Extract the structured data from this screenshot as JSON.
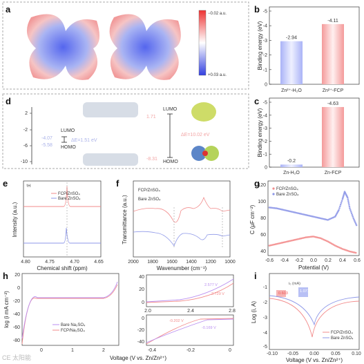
{
  "panels": {
    "a": {
      "label": "a",
      "colorbar_top": "−0.02 a.u.",
      "colorbar_bottom": "+0.03 a.u."
    },
    "b": {
      "label": "b"
    },
    "c": {
      "label": "c"
    },
    "d": {
      "label": "d",
      "ticks": [
        "2",
        "-2",
        "-6",
        "-10"
      ],
      "left_lumo": "-4.07",
      "left_homo": "-5.58",
      "left_gap": "ΔE=1.51 eV",
      "right_lumo": "1.71",
      "right_homo": "-8.31",
      "right_gap": "ΔE=10.02 eV",
      "lumo": "LUMO",
      "homo": "HOMO"
    },
    "e": {
      "label": "e",
      "nucleus": "¹H"
    },
    "f": {
      "label": "f"
    },
    "g": {
      "label": "g"
    },
    "h": {
      "label": "h"
    },
    "i": {
      "label": "i",
      "inset_title": "i₀ (mA)",
      "inset_v1": "0.603",
      "inset_v2": "1.071"
    }
  },
  "colors": {
    "pink": "#f28b8b",
    "blue": "#8d97e8",
    "red_bar": "#ef6b6b",
    "blue_bar": "#8f9cf0"
  },
  "watermark": "CE 太阳能",
  "chart_data": [
    {
      "id": "b",
      "type": "bar",
      "categories": [
        "Zn²⁺-H₂O",
        "Zn²⁺-FCP"
      ],
      "values": [
        -2.94,
        -4.11
      ],
      "value_labels": [
        "-2.94",
        "-4.11"
      ],
      "ylabel": "Binding energy (eV)",
      "ylim": [
        0,
        -5
      ],
      "yticks": [
        "0",
        "-1",
        "-2",
        "-3",
        "-4",
        "-5"
      ]
    },
    {
      "id": "c",
      "type": "bar",
      "categories": [
        "Zn-H₂O",
        "Zn-FCP"
      ],
      "values": [
        -0.2,
        -4.63
      ],
      "value_labels": [
        "-0.2",
        "-4.63"
      ],
      "ylabel": "Binding energy (eV)",
      "ylim": [
        0,
        -5
      ],
      "yticks": [
        "0",
        "-1",
        "-2",
        "-3",
        "-4",
        "-5"
      ]
    },
    {
      "id": "e",
      "type": "line",
      "xlabel": "Chemical shift (ppm)",
      "ylabel": "Intensity (a.u.)",
      "xlim": [
        4.8,
        4.65
      ],
      "xticks": [
        "4.80",
        "4.75",
        "4.70",
        "4.65"
      ],
      "series": [
        {
          "name": "FCP/ZnSO₄",
          "peak": 4.722
        },
        {
          "name": "Bare ZnSO₄",
          "peak": 4.718
        }
      ]
    },
    {
      "id": "f",
      "type": "line",
      "xlabel": "Wavenumber (cm⁻¹)",
      "ylabel": "Transmittance (a.u.)",
      "xlim": [
        2000,
        1000
      ],
      "xticks": [
        "2000",
        "1800",
        "1600",
        "1400",
        "1200",
        "1000"
      ],
      "series": [
        {
          "name": "FCP/ZnSO₄"
        },
        {
          "name": "Bare ZnSO₄"
        }
      ]
    },
    {
      "id": "g",
      "type": "scatter",
      "xlabel": "Potential (V)",
      "ylabel": "C (μF cm⁻²)",
      "xlim": [
        -0.6,
        0.6
      ],
      "ylim": [
        30,
        120
      ],
      "xticks": [
        "-0.6",
        "-0.4",
        "-0.2",
        "0.0",
        "0.2",
        "0.4",
        "0.6"
      ],
      "yticks": [
        "40",
        "60",
        "80",
        "100",
        "120"
      ],
      "series": [
        {
          "name": "FCP/ZnSO₄",
          "x": [
            -0.6,
            -0.5,
            -0.4,
            -0.3,
            -0.2,
            -0.1,
            0.0,
            0.1,
            0.2,
            0.3,
            0.4,
            0.5,
            0.6
          ],
          "y": [
            47,
            49,
            51,
            53,
            55,
            57,
            58,
            56,
            52,
            47,
            43,
            40,
            38
          ]
        },
        {
          "name": "Bare ZnSO₄",
          "x": [
            -0.6,
            -0.5,
            -0.4,
            -0.3,
            -0.2,
            -0.1,
            0.0,
            0.1,
            0.2,
            0.3,
            0.35,
            0.4,
            0.43,
            0.47,
            0.5,
            0.55,
            0.6
          ],
          "y": [
            93,
            92,
            90,
            88,
            86,
            84,
            82,
            80,
            78,
            82,
            90,
            103,
            112,
            105,
            92,
            80,
            70
          ]
        }
      ]
    },
    {
      "id": "h",
      "type": "line",
      "xlabel": "Voltage (V vs. Zn/Zn²⁺)",
      "ylabel": "log (i mA cm⁻²)",
      "xticks_main": [
        "0",
        "1",
        "2"
      ],
      "yticks_main": [
        "20",
        "0",
        "-20",
        "-40",
        "-60",
        "-80"
      ],
      "xticks_top": [
        "2.0",
        "2.4",
        "2.8"
      ],
      "yticks_top": [
        "0",
        "20",
        "40"
      ],
      "xticks_bot": [
        "-0.4",
        "-0.2",
        "0"
      ],
      "yticks_bot": [
        "0",
        "-20",
        "-40"
      ],
      "annotations": [
        "2.577 V",
        "2.729 V",
        "-0.202 V",
        "-0.169 V"
      ],
      "series": [
        {
          "name": "Bare Na₂SO₄"
        },
        {
          "name": "FCP/Na₂SO₄"
        }
      ]
    },
    {
      "id": "i",
      "type": "line",
      "xlabel": "Voltage (V vs. Zn/Zn²⁺)",
      "ylabel": "Log (i, A)",
      "xlim": [
        -0.1,
        0.1
      ],
      "xticks": [
        "-0.10",
        "-0.05",
        "0.00",
        "0.05",
        "0.10"
      ],
      "yticks": [
        "-1",
        "-2",
        "-3",
        "-4",
        "-5"
      ],
      "series": [
        {
          "name": "FCP/ZnSO₄"
        },
        {
          "name": "Bare ZnSO₄"
        }
      ]
    }
  ],
  "text": {
    "b_ylabel": "Binding energy (eV)",
    "c_ylabel": "Binding energy (eV)",
    "b_cat1": "Zn²⁺-H₂O",
    "b_cat2": "Zn²⁺-FCP",
    "b_v1": "-2.94",
    "b_v2": "-4.11",
    "c_cat1": "Zn-H₂O",
    "c_cat2": "Zn-FCP",
    "c_v1": "-0.2",
    "c_v2": "-4.63",
    "yt0": "0",
    "yt1": "-1",
    "yt2": "-2",
    "yt3": "-3",
    "yt4": "-4",
    "yt5": "-5",
    "e_xlabel": "Chemical shift (ppm)",
    "e_ylabel": "Intensity (a.u.)",
    "e_leg1": "FCP/ZnSO₄",
    "e_leg2": "Bare ZnSO₄",
    "e_t1": "4.80",
    "e_t2": "4.75",
    "e_t3": "4.70",
    "e_t4": "4.65",
    "f_xlabel": "Wavenumber (cm⁻¹)",
    "f_ylabel": "Transmittance (a.u.)",
    "f_leg1": "FCP/ZnSO₄",
    "f_leg2": "Bare ZnSO₄",
    "f_t1": "2000",
    "f_t2": "1800",
    "f_t3": "1600",
    "f_t4": "1400",
    "f_t5": "1200",
    "f_t6": "1000",
    "g_xlabel": "Potential (V)",
    "g_ylabel": "C (μF cm⁻²)",
    "g_leg1": "FCP/ZnSO₄",
    "g_leg2": "Bare ZnSO₄",
    "gx1": "-0.6",
    "gx2": "-0.4",
    "gx3": "-0.2",
    "gx4": "0.0",
    "gx5": "0.2",
    "gx6": "0.4",
    "gx7": "0.6",
    "gy1": "120",
    "gy2": "100",
    "gy3": "80",
    "gy4": "60",
    "gy5": "40",
    "h_xlabel": "Voltage (V vs. Zn/Zn²⁺)",
    "h_ylabel": "log (i mA cm⁻²)",
    "h_leg1": "Bare Na₂SO₄",
    "h_leg2": "FCP/Na₂SO₄",
    "hx1": "0",
    "hx2": "1",
    "hx3": "2",
    "hy1": "20",
    "hy2": "0",
    "hy3": "-20",
    "hy4": "-40",
    "hy5": "-60",
    "hy6": "-80",
    "htx1": "2.0",
    "htx2": "2.4",
    "htx3": "2.8",
    "hty1": "40",
    "hty2": "20",
    "hty3": "0",
    "hbx1": "-0.4",
    "hbx2": "-0.2",
    "hbx3": "0",
    "hby1": "0",
    "hby2": "-20",
    "hby3": "-40",
    "ha1": "2.577 V",
    "ha2": "2.729 V",
    "ha3": "-0.202 V",
    "ha4": "-0.169 V",
    "i_xlabel": "Voltage (V vs. Zn/Zn²⁺)",
    "i_ylabel": "Log (i, A)",
    "i_leg1": "FCP/ZnSO₄",
    "i_leg2": "Bare ZnSO₄",
    "ix1": "-0.10",
    "ix2": "-0.05",
    "ix3": "0.00",
    "ix4": "0.05",
    "ix5": "0.10",
    "iy1": "-1",
    "iy2": "-2",
    "iy3": "-3",
    "iy4": "-4",
    "iy5": "-5"
  }
}
